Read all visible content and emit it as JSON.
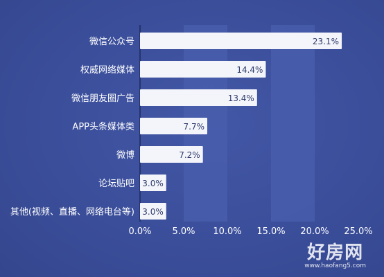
{
  "chart_data": {
    "type": "bar",
    "orientation": "horizontal",
    "title": "",
    "xlabel": "",
    "ylabel": "",
    "categories": [
      "微信公众号",
      "权威网络媒体",
      "微信朋友圈广告",
      "APP头条媒体类",
      "微博",
      "论坛贴吧",
      "其他(视频、直播、网络电台等)"
    ],
    "values": [
      23.1,
      14.4,
      13.4,
      7.7,
      7.2,
      3.0,
      3.0
    ],
    "value_labels": [
      "23.1%",
      "14.4%",
      "13.4%",
      "7.7%",
      "7.2%",
      "3.0%",
      "3.0%"
    ],
    "xlim": [
      0,
      25
    ],
    "xticks": [
      0,
      5,
      10,
      15,
      20,
      25
    ],
    "xtick_labels": [
      "0.0%",
      "5.0%",
      "10.0%",
      "15.0%",
      "20.0%",
      "25.0%"
    ],
    "grid": "alternating vertical bands",
    "legend": "none",
    "colors": {
      "background": "#3b4f9c",
      "bar": "#f4f5fa",
      "band": "#4a5fae",
      "text": "#ffffff",
      "value_text": "#2d3a6b"
    }
  },
  "watermark": {
    "main": "好房网",
    "sub": "www.haofang5.com"
  }
}
